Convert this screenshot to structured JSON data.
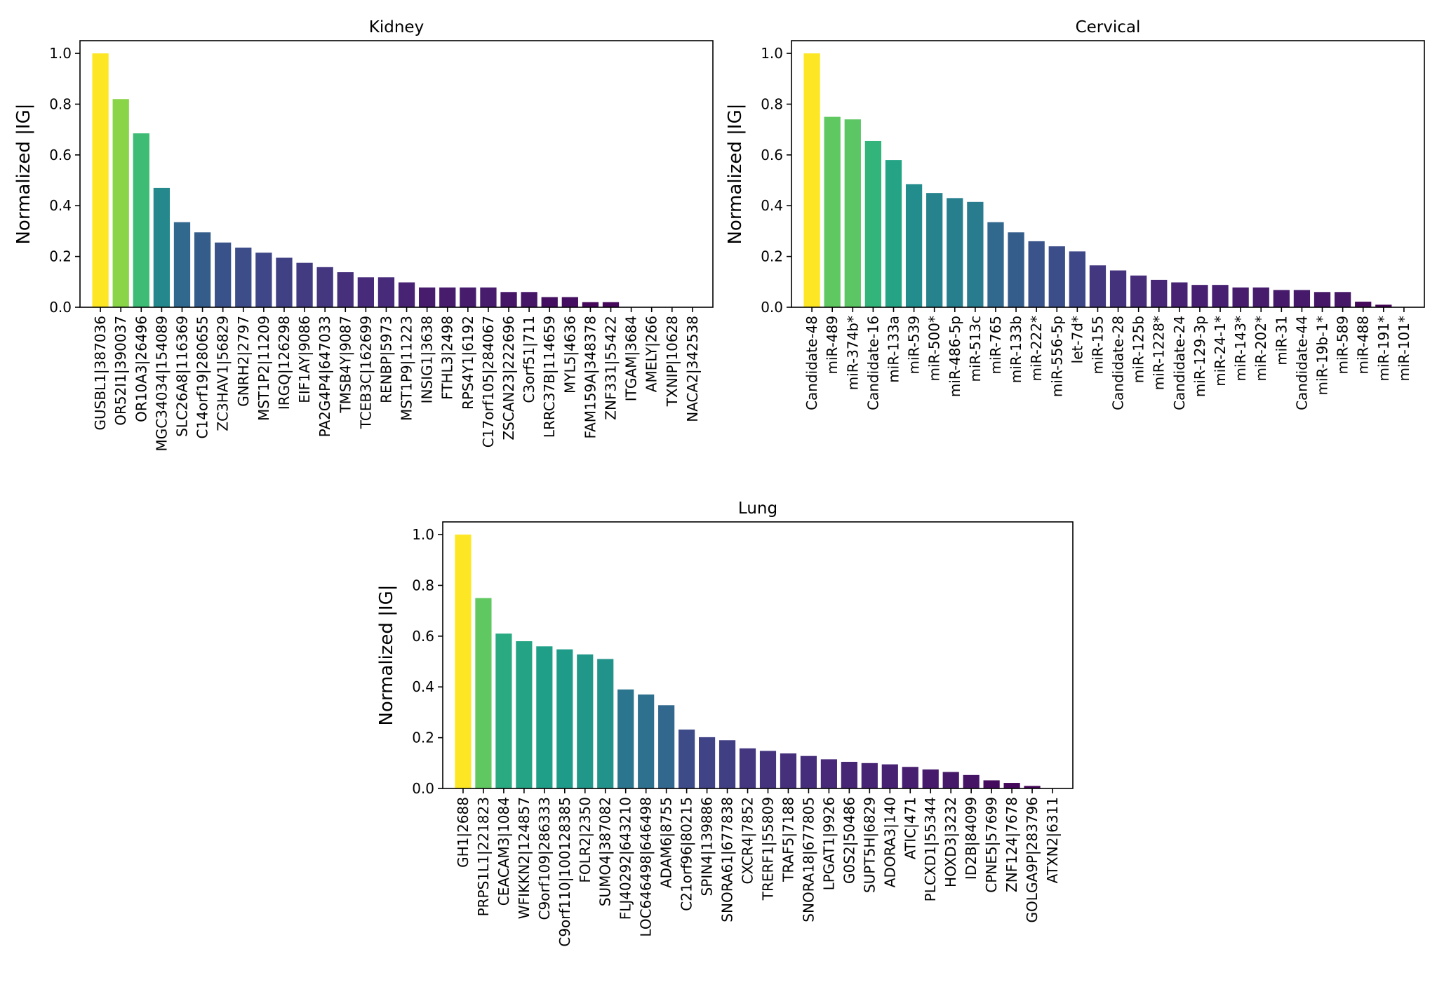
{
  "figure": {
    "ylabel": "Normalized |IG|"
  },
  "chart_data": [
    {
      "type": "bar",
      "title": "Kidney",
      "xlabel": "",
      "ylabel": "Normalized |IG|",
      "ylim": [
        0,
        1.05
      ],
      "yticks": [
        "0.0",
        "0.2",
        "0.4",
        "0.6",
        "0.8",
        "1.0"
      ],
      "colormap": "viridis",
      "categories": [
        "GUSBL1|387036",
        "OR52I1|390037",
        "OR10A3|26496",
        "MGC34034|154089",
        "SLC26A8|116369",
        "C14orf19|280655",
        "ZC3HAV1|56829",
        "GNRH2|2797",
        "MST1P2|11209",
        "IRGQ|126298",
        "EIF1AY|9086",
        "PA2G4P4|647033",
        "TMSB4Y|9087",
        "TCEB3C|162699",
        "RENBP|5973",
        "MST1P9|11223",
        "INSIG1|3638",
        "FTHL3|2498",
        "RPS4Y1|6192",
        "C17orf105|284067",
        "ZSCAN23|222696",
        "C3orf51|711",
        "LRRC37B|114659",
        "MYL5|4636",
        "FAM159A|348378",
        "ZNF331|55422",
        "ITGAM|3684",
        "AMELY|266",
        "TXNIP|10628",
        "NACA2|342538"
      ],
      "values": [
        1.0,
        0.82,
        0.685,
        0.47,
        0.335,
        0.295,
        0.255,
        0.235,
        0.215,
        0.195,
        0.175,
        0.158,
        0.138,
        0.118,
        0.118,
        0.098,
        0.078,
        0.078,
        0.078,
        0.078,
        0.06,
        0.06,
        0.04,
        0.04,
        0.02,
        0.02,
        0.0,
        0.0,
        0.0,
        0.0
      ]
    },
    {
      "type": "bar",
      "title": "Cervical",
      "xlabel": "",
      "ylabel": "Normalized |IG|",
      "ylim": [
        0,
        1.05
      ],
      "yticks": [
        "0.0",
        "0.2",
        "0.4",
        "0.6",
        "0.8",
        "1.0"
      ],
      "colormap": "viridis",
      "categories": [
        "Candidate-48",
        "miR-489",
        "miR-374b*",
        "Candidate-16",
        "miR-133a",
        "miR-539",
        "miR-500*",
        "miR-486-5p",
        "miR-513c",
        "miR-765",
        "miR-133b",
        "miR-222*",
        "miR-556-5p",
        "let-7d*",
        "miR-155",
        "Candidate-28",
        "miR-125b",
        "miR-1228*",
        "Candidate-24",
        "miR-129-3p",
        "miR-24-1*",
        "miR-143*",
        "miR-202*",
        "miR-31",
        "Candidate-44",
        "miR-19b-1*",
        "miR-589",
        "miR-488",
        "miR-191*",
        "miR-101*"
      ],
      "values": [
        1.0,
        0.75,
        0.74,
        0.655,
        0.58,
        0.485,
        0.45,
        0.43,
        0.415,
        0.335,
        0.295,
        0.26,
        0.24,
        0.22,
        0.165,
        0.145,
        0.125,
        0.108,
        0.098,
        0.088,
        0.088,
        0.078,
        0.078,
        0.068,
        0.068,
        0.06,
        0.06,
        0.022,
        0.01,
        0.0
      ]
    },
    {
      "type": "bar",
      "title": "Lung",
      "xlabel": "",
      "ylabel": "Normalized |IG|",
      "ylim": [
        0,
        1.05
      ],
      "yticks": [
        "0.0",
        "0.2",
        "0.4",
        "0.6",
        "0.8",
        "1.0"
      ],
      "colormap": "viridis",
      "categories": [
        "GH1|2688",
        "PRPS1L1|221823",
        "CEACAM3|1084",
        "WFIKKN2|124857",
        "C9orf109|286333",
        "C9orf110|100128385",
        "FOLR2|2350",
        "SUMO4|387082",
        "FLJ40292|643210",
        "LOC646498|646498",
        "ADAM6|8755",
        "C21orf96|80215",
        "SPIN4|139886",
        "SNORA61|677838",
        "CXCR4|7852",
        "TRERF1|55809",
        "TRAF5|7188",
        "SNORA18|677805",
        "LPGAT1|9926",
        "G0S2|50486",
        "SUPT5H|6829",
        "ADORA3|140",
        "ATIC|471",
        "PLCXD1|55344",
        "HOXD3|3232",
        "ID2B|84099",
        "CPNE5|57699",
        "ZNF124|7678",
        "GOLGA9P|283796",
        "ATXN2|6311"
      ],
      "values": [
        1.0,
        0.75,
        0.61,
        0.58,
        0.56,
        0.548,
        0.528,
        0.51,
        0.39,
        0.37,
        0.328,
        0.232,
        0.202,
        0.19,
        0.158,
        0.148,
        0.138,
        0.128,
        0.115,
        0.105,
        0.1,
        0.095,
        0.085,
        0.075,
        0.065,
        0.053,
        0.032,
        0.022,
        0.01,
        0.0
      ]
    }
  ]
}
